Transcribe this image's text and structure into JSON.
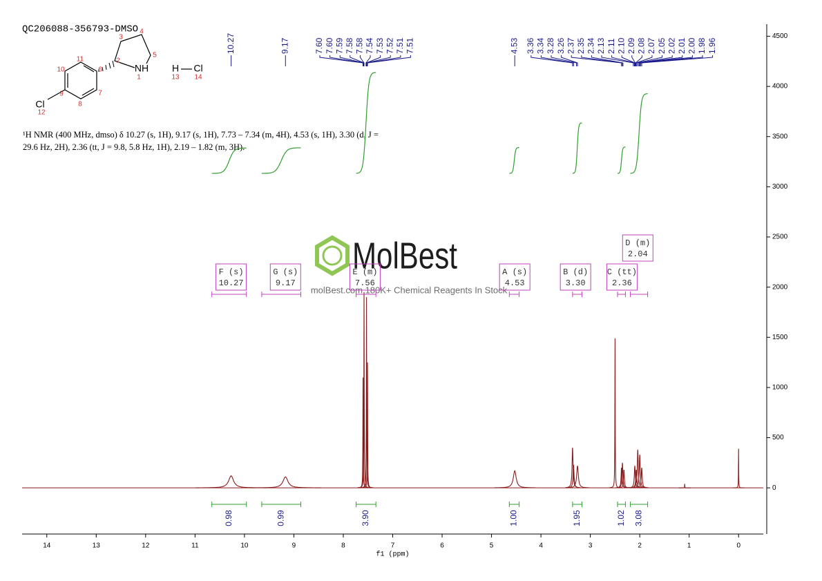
{
  "chart_data": {
    "type": "nmr",
    "title": "QC206088-356793-DMSO",
    "description": [
      "¹H NMR (400 MHz, dmso) δ 10.27 (s, 1H), 9.17 (s, 1H), 7.73 – 7.34 (m, 4H), 4.53 (s, 1H), 3.30 (d, J =",
      "29.6 Hz, 2H), 2.36 (tt, J = 9.8, 5.8 Hz, 1H), 2.19 – 1.82 (m, 3H)."
    ],
    "xlabel": "f1 (ppm)",
    "xlim": [
      14.5,
      -0.5
    ],
    "xticks": [
      14,
      13,
      12,
      11,
      10,
      9,
      8,
      7,
      6,
      5,
      4,
      3,
      2,
      1,
      0
    ],
    "ylim": [
      -460,
      4620
    ],
    "yticks": [
      0,
      500,
      1000,
      1500,
      2000,
      2500,
      3000,
      3500,
      4000,
      4500
    ],
    "color": "#8b1a1a",
    "peaks": {
      "ppm": [
        10.27,
        9.17,
        7.6,
        7.58,
        7.53,
        7.51,
        4.53,
        3.36,
        3.34,
        3.26,
        2.5,
        2.37,
        2.35,
        2.32,
        2.1,
        2.07,
        2.04,
        2.0,
        1.96,
        1.09,
        0.0
      ],
      "intensity": [
        120,
        110,
        1100,
        1950,
        1900,
        1250,
        170,
        400,
        230,
        220,
        1490,
        200,
        250,
        180,
        220,
        180,
        380,
        330,
        200,
        40,
        390
      ],
      "width": [
        0.06,
        0.06,
        0.004,
        0.004,
        0.004,
        0.004,
        0.035,
        0.012,
        0.012,
        0.02,
        0.004,
        0.01,
        0.01,
        0.01,
        0.012,
        0.012,
        0.012,
        0.012,
        0.012,
        0.003,
        0.003
      ]
    },
    "peak_labels": [
      10.27,
      9.17,
      {
        "value": 7.6,
        "label": "7.60"
      },
      {
        "value": 7.6,
        "label": "7.60"
      },
      7.59,
      7.58,
      7.58,
      7.54,
      7.53,
      7.52,
      7.51,
      7.51,
      4.53,
      3.36,
      3.34,
      3.28,
      3.26,
      2.37,
      2.35,
      2.34,
      2.13,
      2.11,
      {
        "value": 2.1,
        "label": "2.10"
      },
      2.09,
      2.08,
      2.07,
      2.05,
      2.02,
      2.01,
      {
        "value": 2,
        "label": "2.00"
      },
      1.98,
      1.96
    ],
    "integrals": [
      {
        "value": 0.98,
        "range": [
          10.66,
          9.96
        ]
      },
      {
        "value": 0.99,
        "range": [
          9.65,
          8.86
        ]
      },
      {
        "value": 3.9,
        "label": "3.90",
        "range": [
          7.74,
          7.34
        ]
      },
      {
        "value": 1,
        "label": "1.00",
        "range": [
          4.64,
          4.44
        ]
      },
      {
        "value": 1.95,
        "range": [
          3.36,
          3.17
        ]
      },
      {
        "value": 1.02,
        "range": [
          2.45,
          2.29
        ]
      },
      {
        "value": 3.08,
        "range": [
          2.19,
          1.84
        ]
      }
    ],
    "multiplets": [
      {
        "label": "F (s)",
        "shift": 10.27,
        "range": [
          10.66,
          9.96
        ]
      },
      {
        "label": "G (s)",
        "shift": 9.17,
        "range": [
          9.65,
          8.86
        ]
      },
      {
        "label": "E (m)",
        "shift": 7.56,
        "range": [
          7.74,
          7.34
        ]
      },
      {
        "label": "A (s)",
        "shift": 4.53,
        "range": [
          4.64,
          4.44
        ]
      },
      {
        "label": "B (d)",
        "shift": {
          "value": 3.3,
          "label": "3.30"
        },
        "range": [
          3.36,
          3.17
        ]
      },
      {
        "label": "C (tt)",
        "shift": 2.36,
        "range": [
          2.45,
          2.29
        ]
      },
      {
        "label": "D (m)",
        "shift": 2.04,
        "range": [
          2.19,
          1.84
        ]
      }
    ]
  },
  "structure": {
    "atoms": [
      "Cl",
      "NH",
      "H",
      "Cl"
    ],
    "numbers": [
      1,
      2,
      3,
      4,
      5,
      6,
      7,
      8,
      9,
      10,
      11,
      12,
      13,
      14
    ]
  },
  "watermark": {
    "brand": "MolBest",
    "tagline": "molBest.com 180K+ Chemical Reagents In Stock"
  }
}
